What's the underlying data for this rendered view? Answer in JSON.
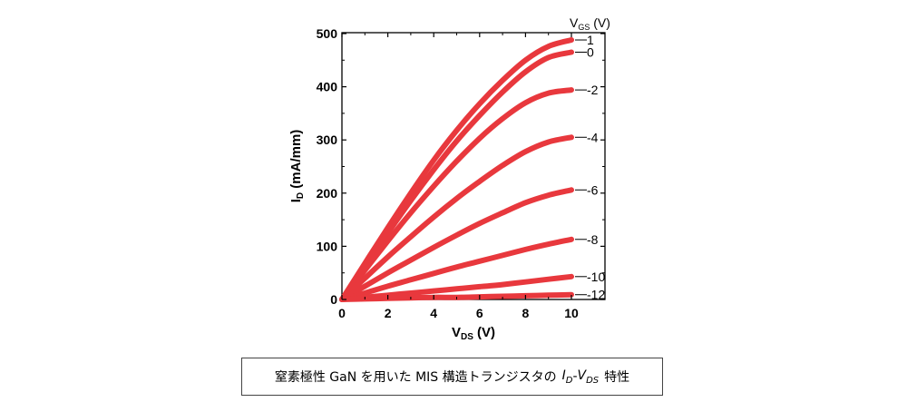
{
  "caption": {
    "text": "窒素極性 GaN を用いた MIS 構造トランジスタの",
    "i_letter": "I",
    "i_sub": "D",
    "dash": "-",
    "v_letter": "V",
    "v_sub": "DS",
    "suffix": "特性"
  },
  "chart_data": {
    "type": "line",
    "xlabel": {
      "main": "V",
      "sub": "DS",
      "unit": " (V)"
    },
    "ylabel": {
      "main": "I",
      "sub": "D",
      "unit": " (mA/mm)"
    },
    "legend_title": {
      "main": "V",
      "sub": "GS",
      "unit": " (V)"
    },
    "xlim": [
      0,
      10
    ],
    "ylim": [
      0,
      500
    ],
    "xticks": [
      "0",
      "2",
      "4",
      "6",
      "8",
      "10"
    ],
    "yticks": [
      "0",
      "100",
      "200",
      "300",
      "400",
      "500"
    ],
    "grid": false,
    "line_color": "#e8383d",
    "x": [
      0,
      1,
      2,
      3,
      4,
      5,
      6,
      7,
      8,
      9,
      10
    ],
    "series": [
      {
        "name": "1",
        "values": [
          0,
          68,
          135,
          200,
          262,
          318,
          368,
          412,
          450,
          476,
          488
        ]
      },
      {
        "name": "0",
        "values": [
          0,
          63,
          125,
          186,
          244,
          298,
          346,
          390,
          428,
          455,
          465
        ]
      },
      {
        "name": "-2",
        "values": [
          0,
          55,
          110,
          163,
          213,
          260,
          303,
          340,
          370,
          388,
          394
        ]
      },
      {
        "name": "-4",
        "values": [
          0,
          40,
          80,
          118,
          155,
          190,
          222,
          252,
          278,
          296,
          305
        ]
      },
      {
        "name": "-6",
        "values": [
          0,
          25,
          50,
          74,
          98,
          121,
          143,
          163,
          182,
          196,
          206
        ]
      },
      {
        "name": "-8",
        "values": [
          0,
          12,
          25,
          37,
          49,
          61,
          72,
          83,
          94,
          104,
          113
        ]
      },
      {
        "name": "-10",
        "values": [
          0,
          4,
          8,
          12,
          16,
          20,
          24,
          28,
          33,
          38,
          43
        ]
      },
      {
        "name": "-12",
        "values": [
          0,
          1,
          2,
          3,
          4,
          4,
          5,
          6,
          7,
          8,
          9
        ]
      }
    ]
  }
}
